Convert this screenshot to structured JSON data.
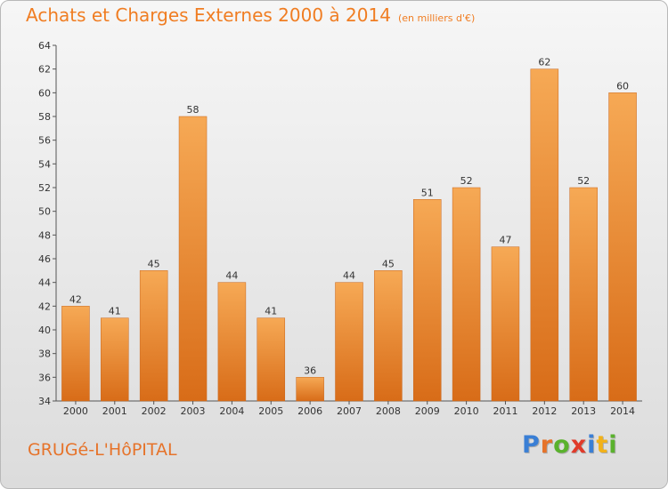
{
  "title": "Achats et Charges Externes 2000 à 2014",
  "subtitle": "(en milliers d'€)",
  "commune": "GRUGé-L'HôPITAL",
  "brand": {
    "letters": [
      "P",
      "r",
      "o",
      "x",
      "i",
      "t",
      "i"
    ],
    "colors": [
      "#3a7fd5",
      "#e6732a",
      "#5ab22d",
      "#e03a2a",
      "#3a7fd5",
      "#f2b21a",
      "#5ab22d"
    ]
  },
  "colors": {
    "bar": "#f08a2c",
    "bar_light": "#f6a955",
    "bar_dark": "#d86c18",
    "title": "#f07d22"
  },
  "chart_data": {
    "type": "bar",
    "categories": [
      "2000",
      "2001",
      "2002",
      "2003",
      "2004",
      "2005",
      "2006",
      "2007",
      "2008",
      "2009",
      "2010",
      "2011",
      "2012",
      "2013",
      "2014"
    ],
    "values": [
      42,
      41,
      45,
      58,
      44,
      41,
      36,
      44,
      45,
      51,
      52,
      47,
      62,
      52,
      60
    ],
    "ylim": [
      34,
      64
    ],
    "yticks": [
      34,
      36,
      38,
      40,
      42,
      44,
      46,
      48,
      50,
      52,
      54,
      56,
      58,
      60,
      62,
      64
    ],
    "grid": false
  }
}
